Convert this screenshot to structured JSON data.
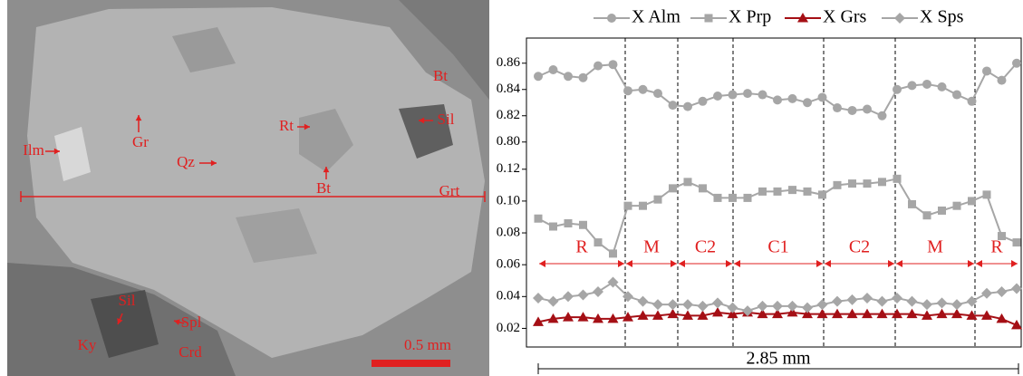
{
  "image": {
    "labels": [
      "Bt",
      "Sil",
      "Rt",
      "Ilm",
      "Gr",
      "Qz",
      "Bt",
      "Grt",
      "Sil",
      "Spl",
      "Ky",
      "Crd"
    ],
    "scale_bar": "0.5 mm"
  },
  "chart_data": {
    "type": "line",
    "categories": [
      null,
      null,
      null,
      null,
      null,
      null,
      null,
      null,
      null,
      null,
      null,
      null,
      null,
      null,
      null,
      null,
      null,
      null,
      null,
      null,
      null,
      null,
      null,
      null,
      null,
      null,
      null,
      null,
      null,
      null,
      null,
      null,
      null
    ],
    "y_segments": [
      {
        "ylim": [
          0.795,
          0.875
        ],
        "yticks": [
          {
            "value": 0.8,
            "label": "0.80"
          },
          0.82,
          0.84,
          0.86
        ]
      },
      {
        "ylim": [
          0.01,
          0.125
        ],
        "yticks": [
          0.02,
          0.04,
          0.06,
          0.08,
          {
            "value": 0.1,
            "label": "0.10"
          },
          0.12
        ]
      }
    ],
    "series": [
      {
        "name": "X Alm",
        "color": "#a6a6a6",
        "marker": "circle",
        "segment": 0,
        "values": [
          0.85,
          0.855,
          0.85,
          0.849,
          0.858,
          0.859,
          0.839,
          0.84,
          0.837,
          0.828,
          0.827,
          0.831,
          0.835,
          0.836,
          0.837,
          0.836,
          0.832,
          0.833,
          0.83,
          0.834,
          0.826,
          0.824,
          0.825,
          0.82,
          0.84,
          0.843,
          0.844,
          0.842,
          0.836,
          0.831,
          0.854,
          0.847,
          0.86
        ]
      },
      {
        "name": "X Prp",
        "color": "#a6a6a6",
        "marker": "square",
        "segment": 1,
        "values": [
          0.089,
          0.084,
          0.086,
          0.085,
          0.074,
          0.067,
          0.097,
          0.097,
          0.101,
          0.108,
          0.112,
          0.108,
          0.102,
          0.102,
          0.102,
          0.106,
          0.106,
          0.107,
          0.106,
          0.104,
          0.11,
          0.111,
          0.111,
          0.112,
          0.114,
          0.098,
          0.091,
          0.094,
          0.097,
          0.1,
          0.104,
          0.078,
          0.074
        ]
      },
      {
        "name": "X Grs",
        "color": "#a50f15",
        "marker": "triangle",
        "segment": 1,
        "values": [
          0.024,
          0.026,
          0.027,
          0.027,
          0.026,
          0.026,
          0.027,
          0.028,
          0.028,
          0.029,
          0.028,
          0.028,
          0.03,
          0.029,
          0.03,
          0.029,
          0.029,
          0.03,
          0.029,
          0.029,
          0.029,
          0.029,
          0.029,
          0.029,
          0.029,
          0.029,
          0.028,
          0.029,
          0.029,
          0.028,
          0.028,
          0.026,
          0.022
        ]
      },
      {
        "name": "X Sps",
        "color": "#a6a6a6",
        "marker": "diamond",
        "segment": 1,
        "values": [
          0.039,
          0.037,
          0.04,
          0.041,
          0.043,
          0.049,
          0.04,
          0.037,
          0.035,
          0.035,
          0.035,
          0.034,
          0.036,
          0.033,
          0.031,
          0.034,
          0.034,
          0.034,
          0.033,
          0.035,
          0.037,
          0.038,
          0.039,
          0.037,
          0.039,
          0.037,
          0.035,
          0.036,
          0.035,
          0.037,
          0.042,
          0.043,
          0.045
        ]
      }
    ],
    "zones": [
      "R",
      "M",
      "C2",
      "C1",
      "C2",
      "M",
      "R"
    ],
    "distance_label": "2.85 mm"
  }
}
